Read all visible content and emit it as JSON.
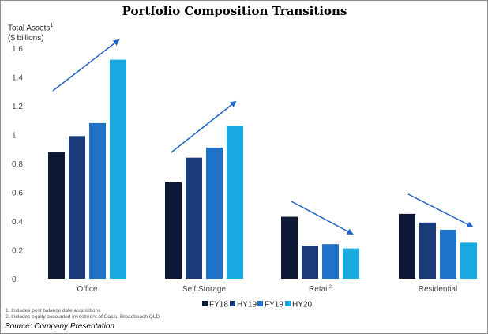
{
  "chart_data": {
    "type": "bar",
    "title": "Portfolio Composition Transitions",
    "ylabel_line1": "Total Assets",
    "ylabel_sup": "1",
    "ylabel_line2": "($ billions)",
    "ylim": [
      0,
      1.6
    ],
    "yticks": [
      "0",
      "0.2",
      "0.4",
      "0.6",
      "0.8",
      "1",
      "1.2",
      "1.4",
      "1.6"
    ],
    "categories": [
      "Office",
      "Self Storage",
      "Retail",
      "Residential"
    ],
    "category_superscripts": [
      "",
      "",
      "2",
      ""
    ],
    "series": [
      {
        "name": "FY18",
        "color": "#0c1836",
        "values": [
          0.88,
          0.67,
          0.43,
          0.45
        ]
      },
      {
        "name": "HY19",
        "color": "#1b3a7a",
        "values": [
          0.99,
          0.84,
          0.23,
          0.39
        ]
      },
      {
        "name": "FY19",
        "color": "#1e72c8",
        "values": [
          1.08,
          0.91,
          0.24,
          0.34
        ]
      },
      {
        "name": "HY20",
        "color": "#19a8e0",
        "values": [
          1.52,
          1.06,
          0.21,
          0.25
        ]
      }
    ],
    "trend_arrows": [
      "up",
      "up",
      "down",
      "down"
    ],
    "arrow_color": "#1f64c6",
    "grid": false,
    "legend_position": "bottom-center"
  },
  "footnotes": [
    "1.   Includes post balance date acquisitions",
    "2.   Includes equity accounted investment of Oasis, Broadbeach QLD"
  ],
  "source": "Source: Company Presentation"
}
